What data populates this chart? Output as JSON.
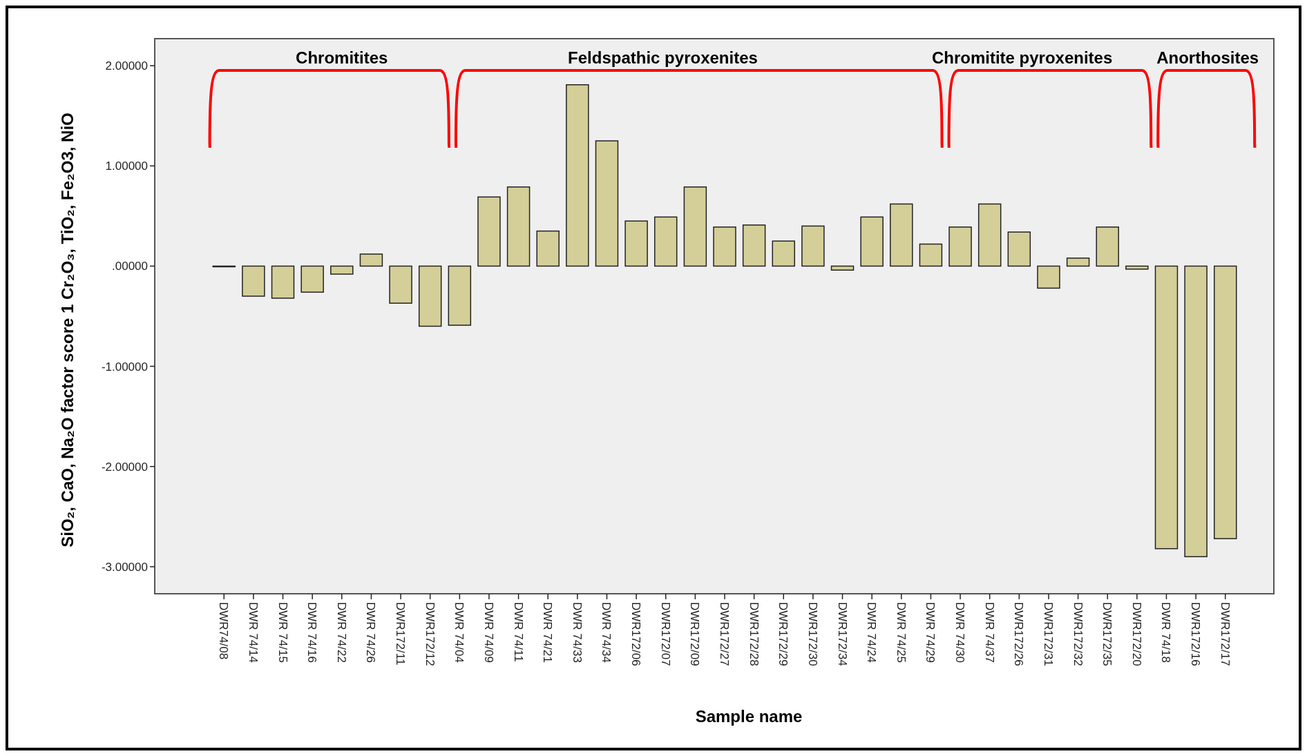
{
  "chart_data": {
    "type": "bar",
    "categories": [
      "DWR74/08",
      "DWR 74/14",
      "DWR 74/15",
      "DWR 74/16",
      "DWR 74/22",
      "DWR 74/26",
      "DWR172/11",
      "DWR172/12",
      "DWR 74/04",
      "DWR 74/09",
      "DWR 74/11",
      "DWR 74/21",
      "DWR 74/33",
      "DWR 74/34",
      "DWR172/06",
      "DWR172/07",
      "DWR172/09",
      "DWR172/27",
      "DWR172/28",
      "DWR172/29",
      "DWR172/30",
      "DWR172/34",
      "DWR 74/24",
      "DWR 74/25",
      "DWR 74/29",
      "DWR 74/30",
      "DWR 74/37",
      "DWR172/26",
      "DWR172/31",
      "DWR172/32",
      "DWR172/35",
      "DWR172/20",
      "DWR 74/18",
      "DWR172/16",
      "DWR172/17"
    ],
    "values": [
      0.0,
      -0.3,
      -0.32,
      -0.26,
      -0.08,
      0.12,
      -0.37,
      -0.6,
      -0.59,
      0.69,
      0.79,
      0.35,
      1.81,
      1.25,
      0.45,
      0.49,
      0.79,
      0.39,
      0.41,
      0.25,
      0.4,
      -0.04,
      0.49,
      0.62,
      0.22,
      0.39,
      0.62,
      0.34,
      -0.22,
      0.08,
      0.39,
      -0.03,
      -2.82,
      -2.9,
      -2.72
    ],
    "color": "#d4cf98",
    "xlabel": "Sample name",
    "ylabel": "SiO₂, CaO, Na₂O factor score 1 Cr₂O₃, TiO₂, Fe₂O3, NiO",
    "ylim": [
      -3.27,
      2.27
    ],
    "yticks": [
      {
        "value": -3,
        "label": "-3.00000"
      },
      {
        "value": -2,
        "label": "-2.00000"
      },
      {
        "value": -1,
        "label": "-1.00000"
      },
      {
        "value": 0,
        "label": ".00000"
      },
      {
        "value": 1,
        "label": "1.00000"
      },
      {
        "value": 2,
        "label": "2.00000"
      }
    ],
    "annotations": [
      "Chromitites",
      "Feldspathic pyroxenites",
      "Chromitite pyroxenites",
      "Anorthosites"
    ]
  }
}
